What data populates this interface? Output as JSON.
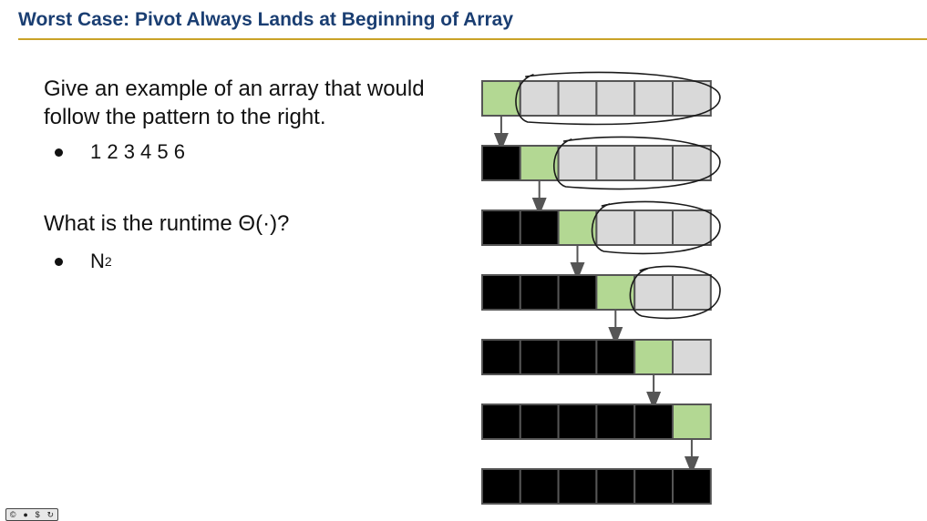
{
  "slide": {
    "title": "Worst Case: Pivot Always Lands at Beginning of Array",
    "question1": "Give an example of an array that would follow the pattern to the right.",
    "answer1": "1 2 3 4 5 6",
    "question2": "What is the runtime Θ(·)?",
    "answer2_base": "N",
    "answer2_exp": "2"
  },
  "diagram": {
    "array_length": 6,
    "pivot_positions": [
      0,
      1,
      2,
      3,
      4,
      5,
      null
    ],
    "colors": {
      "sorted": "#000000",
      "pivot": "#b3d893",
      "unsorted": "#d9d9d9",
      "border": "#555555",
      "arrow": "#555555",
      "ink": "#1a1a1a"
    }
  },
  "license": {
    "icons": [
      "cc-icon",
      "by-icon",
      "nc-icon",
      "sa-icon"
    ]
  }
}
